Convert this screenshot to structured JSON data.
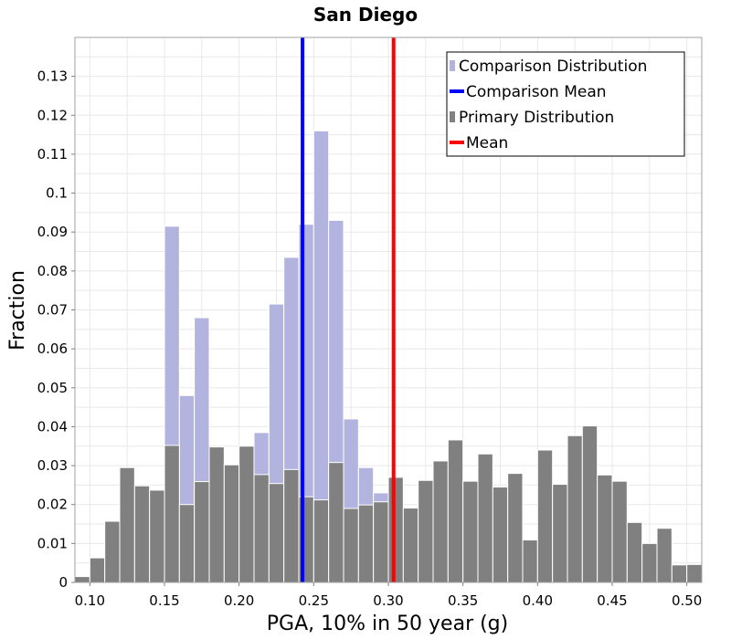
{
  "chart_data": {
    "type": "bar",
    "title": "San Diego",
    "xlabel": "PGA, 10% in 50 year (g)",
    "ylabel": "Fraction",
    "xlim": [
      0.09,
      0.51
    ],
    "ylim": [
      0,
      0.14
    ],
    "bin_width": 0.01,
    "x_ticks": [
      0.1,
      0.15,
      0.2,
      0.25,
      0.3,
      0.35,
      0.4,
      0.45,
      0.5
    ],
    "x_tick_labels": [
      "0.10",
      "0.15",
      "0.20",
      "0.25",
      "0.30",
      "0.35",
      "0.40",
      "0.45",
      "0.50"
    ],
    "y_ticks": [
      0,
      0.01,
      0.02,
      0.03,
      0.04,
      0.05,
      0.06,
      0.07,
      0.08,
      0.09,
      0.1,
      0.11,
      0.12,
      0.13
    ],
    "y_tick_labels": [
      "0",
      "0.01",
      "0.02",
      "0.03",
      "0.04",
      "0.05",
      "0.06",
      "0.07",
      "0.08",
      "0.09",
      "0.1",
      "0.11",
      "0.12",
      "0.13"
    ],
    "grid": true,
    "legend_position": "top-right",
    "series": [
      {
        "name": "Comparison Distribution",
        "kind": "histogram",
        "color": "#b3b3e0",
        "x": [
          0.155,
          0.165,
          0.175,
          0.215,
          0.225,
          0.235,
          0.245,
          0.255,
          0.265,
          0.275,
          0.285,
          0.295
        ],
        "values": [
          0.0915,
          0.048,
          0.068,
          0.0385,
          0.0715,
          0.0835,
          0.092,
          0.116,
          0.093,
          0.042,
          0.0295,
          0.023
        ]
      },
      {
        "name": "Primary Distribution",
        "kind": "histogram",
        "color": "#808080",
        "x": [
          0.095,
          0.105,
          0.115,
          0.125,
          0.135,
          0.145,
          0.155,
          0.165,
          0.175,
          0.185,
          0.195,
          0.205,
          0.215,
          0.225,
          0.235,
          0.245,
          0.255,
          0.265,
          0.275,
          0.285,
          0.295,
          0.305,
          0.315,
          0.325,
          0.335,
          0.345,
          0.355,
          0.365,
          0.375,
          0.385,
          0.395,
          0.405,
          0.415,
          0.425,
          0.435,
          0.445,
          0.455,
          0.465,
          0.475,
          0.485,
          0.495,
          0.505
        ],
        "values": [
          0.0015,
          0.0063,
          0.0157,
          0.0295,
          0.0248,
          0.0237,
          0.0352,
          0.02,
          0.0259,
          0.0348,
          0.0302,
          0.035,
          0.0277,
          0.0254,
          0.029,
          0.022,
          0.0212,
          0.0308,
          0.019,
          0.0199,
          0.0207,
          0.027,
          0.0191,
          0.0262,
          0.0312,
          0.0366,
          0.026,
          0.033,
          0.0245,
          0.028,
          0.0109,
          0.034,
          0.0252,
          0.0377,
          0.0402,
          0.0276,
          0.026,
          0.0154,
          0.01,
          0.0139,
          0.0045,
          0.0046
        ]
      },
      {
        "name": "Comparison Mean",
        "kind": "vline",
        "color": "#0000ff",
        "x": 0.2425
      },
      {
        "name": "Mean",
        "kind": "vline",
        "color": "#ff0000",
        "x": 0.3035
      }
    ],
    "legend": [
      {
        "label": "Comparison Distribution",
        "style": "box",
        "color": "#b3b3e0"
      },
      {
        "label": "Comparison Mean",
        "style": "line",
        "color": "#0000ff"
      },
      {
        "label": "Primary Distribution",
        "style": "box",
        "color": "#808080"
      },
      {
        "label": "Mean",
        "style": "line",
        "color": "#ff0000"
      }
    ]
  }
}
